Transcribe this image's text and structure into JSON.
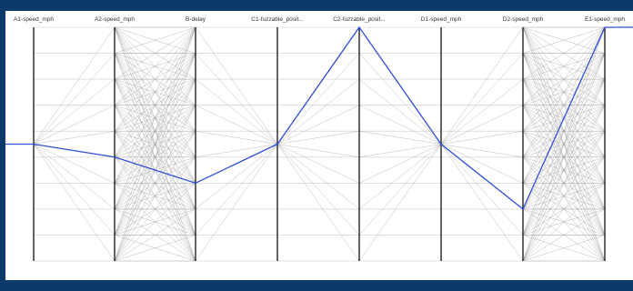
{
  "chart_data": {
    "type": "parallel-coordinates",
    "title": "",
    "axes": [
      {
        "label": "A1-speed_mph",
        "levels": 1
      },
      {
        "label": "A2-speed_mph",
        "levels": 10
      },
      {
        "label": "B-delay",
        "levels": 10
      },
      {
        "label": "C1-fuzzable_posit...",
        "levels": 1
      },
      {
        "label": "C2-fuzzable_posit...",
        "levels": 10
      },
      {
        "label": "D1-speed_mph",
        "levels": 1
      },
      {
        "label": "D2-speed_mph",
        "levels": 10
      },
      {
        "label": "E1-speed_mph",
        "levels": 10
      }
    ],
    "highlighted_path": [
      5,
      5,
      6,
      0,
      0,
      7,
      7,
      0
    ],
    "colors": {
      "background_lines": "#9a9a9a",
      "highlight": "#2e4fd8",
      "axis": "#222222",
      "grid": "#cccccc",
      "frame": "#0d3a6b"
    },
    "grid": true
  }
}
